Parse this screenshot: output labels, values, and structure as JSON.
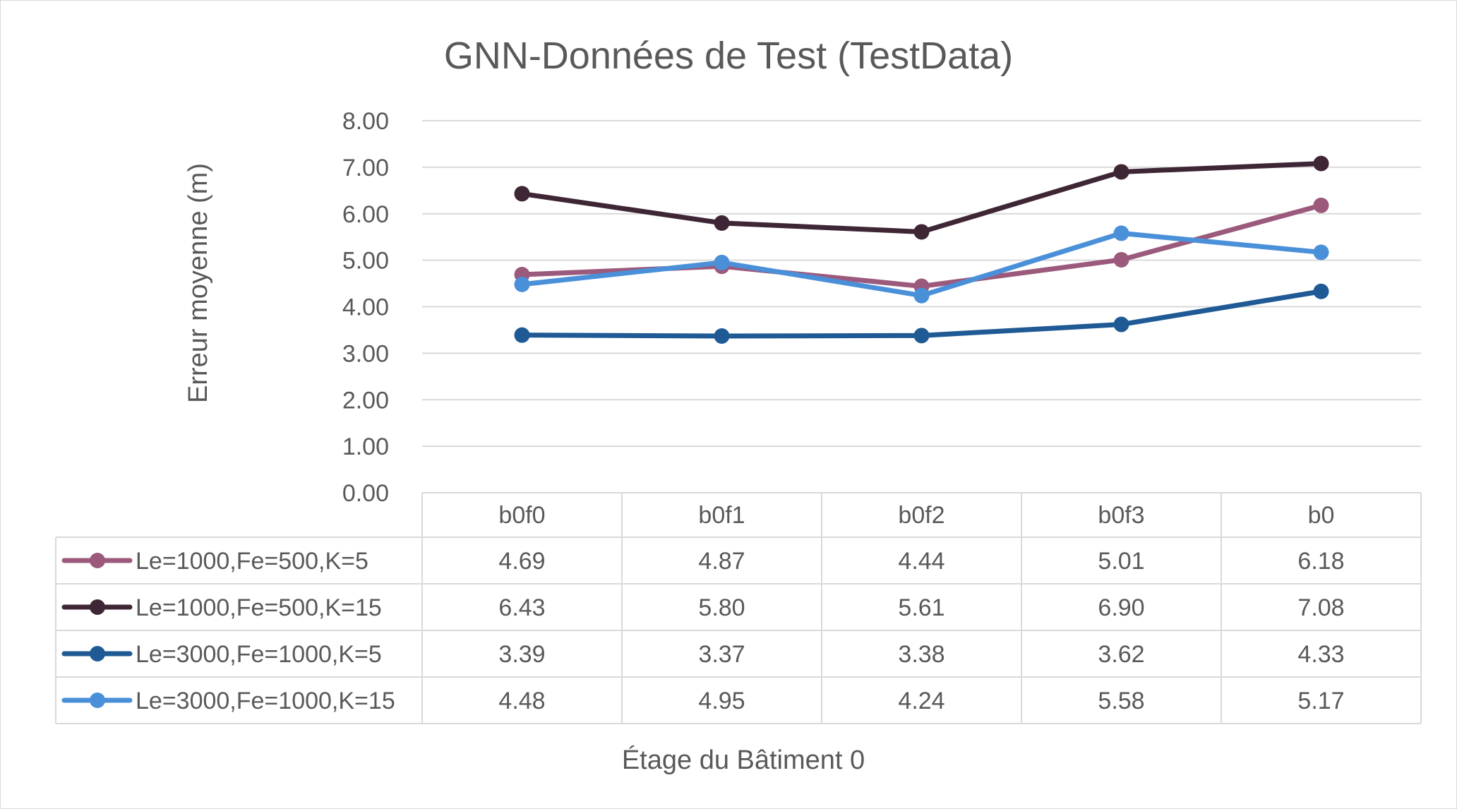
{
  "chart_data": {
    "type": "line",
    "title": "GNN-Données de Test (TestData)",
    "xlabel": "Étage du Bâtiment 0",
    "ylabel": "Erreur moyenne (m)",
    "ylim": [
      0,
      8
    ],
    "yticks": [
      "0.00",
      "1.00",
      "2.00",
      "3.00",
      "4.00",
      "5.00",
      "6.00",
      "7.00",
      "8.00"
    ],
    "grid": true,
    "legend": "data-table",
    "categories": [
      "b0f0",
      "b0f1",
      "b0f2",
      "b0f3",
      "b0"
    ],
    "series": [
      {
        "name": "Le=1000,Fe=500,K=5",
        "color": "#9b5a7c",
        "values": [
          4.69,
          4.87,
          4.44,
          5.01,
          6.18
        ],
        "labels": [
          "4.69",
          "4.87",
          "4.44",
          "5.01",
          "6.18"
        ]
      },
      {
        "name": "Le=1000,Fe=500,K=15",
        "color": "#3e2635",
        "values": [
          6.43,
          5.8,
          5.61,
          6.9,
          7.08
        ],
        "labels": [
          "6.43",
          "5.80",
          "5.61",
          "6.90",
          "7.08"
        ]
      },
      {
        "name": "Le=3000,Fe=1000,K=5",
        "color": "#1f5a95",
        "values": [
          3.39,
          3.37,
          3.38,
          3.62,
          4.33
        ],
        "labels": [
          "3.39",
          "3.37",
          "3.38",
          "3.62",
          "4.33"
        ]
      },
      {
        "name": "Le=3000,Fe=1000,K=15",
        "color": "#4a90d9",
        "values": [
          4.48,
          4.95,
          4.24,
          5.58,
          5.17
        ],
        "labels": [
          "4.48",
          "4.95",
          "4.24",
          "5.58",
          "5.17"
        ]
      }
    ]
  }
}
